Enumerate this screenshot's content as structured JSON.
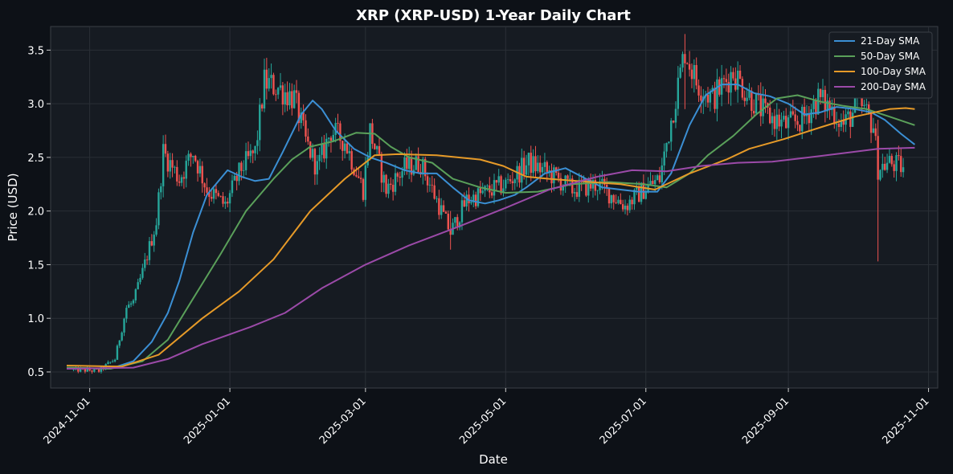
{
  "chart_data": {
    "type": "line",
    "title": "XRP (XRP-USD) 1-Year Daily Chart",
    "xlabel": "Date",
    "ylabel": "Price (USD)",
    "x_range": [
      "2024-10-15",
      "2025-11-05"
    ],
    "xticks": [
      "2024-11-01",
      "2025-01-01",
      "2025-03-01",
      "2025-05-01",
      "2025-07-01",
      "2025-09-01",
      "2025-11-01"
    ],
    "ylim": [
      0.35,
      3.72
    ],
    "yticks": [
      "0.5",
      "1.0",
      "1.5",
      "2.0",
      "2.5",
      "3.0",
      "3.5"
    ],
    "grid": true,
    "legend_position": "top-right",
    "candles": {
      "up_color": "#26a69a",
      "down_color": "#ef5350",
      "anchors": [
        [
          "2024-10-25",
          0.52
        ],
        [
          "2024-11-05",
          0.51
        ],
        [
          "2024-11-12",
          0.62
        ],
        [
          "2024-11-17",
          1.1
        ],
        [
          "2024-11-20",
          1.15
        ],
        [
          "2024-11-24",
          1.43
        ],
        [
          "2024-11-30",
          1.9
        ],
        [
          "2024-12-03",
          2.55
        ],
        [
          "2024-12-10",
          2.3
        ],
        [
          "2024-12-16",
          2.55
        ],
        [
          "2024-12-22",
          2.2
        ],
        [
          "2024-12-30",
          2.05
        ],
        [
          "2025-01-06",
          2.4
        ],
        [
          "2025-01-12",
          2.55
        ],
        [
          "2025-01-16",
          3.2
        ],
        [
          "2025-01-22",
          3.15
        ],
        [
          "2025-01-29",
          3.05
        ],
        [
          "2025-02-03",
          2.65
        ],
        [
          "2025-02-08",
          2.4
        ],
        [
          "2025-02-14",
          2.75
        ],
        [
          "2025-02-20",
          2.65
        ],
        [
          "2025-02-28",
          2.2
        ],
        [
          "2025-03-03",
          2.75
        ],
        [
          "2025-03-10",
          2.2
        ],
        [
          "2025-03-18",
          2.4
        ],
        [
          "2025-03-25",
          2.45
        ],
        [
          "2025-04-01",
          2.1
        ],
        [
          "2025-04-07",
          1.8
        ],
        [
          "2025-04-14",
          2.1
        ],
        [
          "2025-04-25",
          2.2
        ],
        [
          "2025-05-01",
          2.25
        ],
        [
          "2025-05-11",
          2.45
        ],
        [
          "2025-05-20",
          2.35
        ],
        [
          "2025-05-30",
          2.2
        ],
        [
          "2025-06-10",
          2.25
        ],
        [
          "2025-06-22",
          2.05
        ],
        [
          "2025-06-30",
          2.2
        ],
        [
          "2025-07-07",
          2.3
        ],
        [
          "2025-07-12",
          2.85
        ],
        [
          "2025-07-18",
          3.5
        ],
        [
          "2025-07-23",
          3.2
        ],
        [
          "2025-07-30",
          3.05
        ],
        [
          "2025-08-08",
          3.3
        ],
        [
          "2025-08-14",
          3.1
        ],
        [
          "2025-08-22",
          2.9
        ],
        [
          "2025-08-31",
          2.8
        ],
        [
          "2025-09-07",
          2.85
        ],
        [
          "2025-09-14",
          3.05
        ],
        [
          "2025-09-20",
          2.95
        ],
        [
          "2025-09-25",
          2.8
        ],
        [
          "2025-10-02",
          3.0
        ],
        [
          "2025-10-08",
          2.8
        ],
        [
          "2025-10-10",
          2.4
        ],
        [
          "2025-10-15",
          2.45
        ],
        [
          "2025-10-21",
          2.4
        ]
      ],
      "special_wicks": [
        [
          "2025-10-10",
          1.53,
          2.85
        ],
        [
          "2025-04-07",
          1.64,
          2.0
        ],
        [
          "2025-07-18",
          2.95,
          3.65
        ]
      ]
    },
    "series": [
      {
        "name": "21-Day SMA",
        "color": "#3b8fd4",
        "points": [
          [
            "2024-10-22",
            0.54
          ],
          [
            "2024-11-10",
            0.53
          ],
          [
            "2024-11-20",
            0.6
          ],
          [
            "2024-11-28",
            0.78
          ],
          [
            "2024-12-05",
            1.05
          ],
          [
            "2024-12-10",
            1.35
          ],
          [
            "2024-12-16",
            1.8
          ],
          [
            "2024-12-22",
            2.15
          ],
          [
            "2024-12-31",
            2.38
          ],
          [
            "2025-01-06",
            2.32
          ],
          [
            "2025-01-12",
            2.28
          ],
          [
            "2025-01-18",
            2.3
          ],
          [
            "2025-01-24",
            2.55
          ],
          [
            "2025-02-01",
            2.9
          ],
          [
            "2025-02-06",
            3.03
          ],
          [
            "2025-02-10",
            2.95
          ],
          [
            "2025-02-16",
            2.75
          ],
          [
            "2025-02-24",
            2.58
          ],
          [
            "2025-03-03",
            2.5
          ],
          [
            "2025-03-10",
            2.45
          ],
          [
            "2025-03-18",
            2.38
          ],
          [
            "2025-03-25",
            2.35
          ],
          [
            "2025-04-01",
            2.35
          ],
          [
            "2025-04-08",
            2.22
          ],
          [
            "2025-04-15",
            2.1
          ],
          [
            "2025-04-22",
            2.07
          ],
          [
            "2025-04-28",
            2.1
          ],
          [
            "2025-05-05",
            2.15
          ],
          [
            "2025-05-10",
            2.22
          ],
          [
            "2025-05-18",
            2.35
          ],
          [
            "2025-05-27",
            2.4
          ],
          [
            "2025-06-05",
            2.3
          ],
          [
            "2025-06-12",
            2.22
          ],
          [
            "2025-06-20",
            2.2
          ],
          [
            "2025-06-28",
            2.18
          ],
          [
            "2025-07-06",
            2.18
          ],
          [
            "2025-07-12",
            2.35
          ],
          [
            "2025-07-20",
            2.8
          ],
          [
            "2025-07-27",
            3.08
          ],
          [
            "2025-08-03",
            3.18
          ],
          [
            "2025-08-10",
            3.18
          ],
          [
            "2025-08-17",
            3.1
          ],
          [
            "2025-08-24",
            3.07
          ],
          [
            "2025-09-01",
            3.0
          ],
          [
            "2025-09-08",
            2.9
          ],
          [
            "2025-09-15",
            2.92
          ],
          [
            "2025-09-22",
            2.97
          ],
          [
            "2025-09-30",
            2.95
          ],
          [
            "2025-10-07",
            2.92
          ],
          [
            "2025-10-13",
            2.85
          ],
          [
            "2025-10-20",
            2.72
          ],
          [
            "2025-10-26",
            2.62
          ]
        ]
      },
      {
        "name": "50-Day SMA",
        "color": "#5aa05a",
        "points": [
          [
            "2024-10-22",
            0.54
          ],
          [
            "2024-11-10",
            0.53
          ],
          [
            "2024-11-24",
            0.6
          ],
          [
            "2024-12-05",
            0.8
          ],
          [
            "2024-12-15",
            1.15
          ],
          [
            "2024-12-28",
            1.6
          ],
          [
            "2025-01-08",
            2.0
          ],
          [
            "2025-01-20",
            2.3
          ],
          [
            "2025-01-28",
            2.48
          ],
          [
            "2025-02-05",
            2.6
          ],
          [
            "2025-02-15",
            2.65
          ],
          [
            "2025-02-25",
            2.73
          ],
          [
            "2025-03-05",
            2.72
          ],
          [
            "2025-03-12",
            2.6
          ],
          [
            "2025-03-20",
            2.5
          ],
          [
            "2025-03-30",
            2.45
          ],
          [
            "2025-04-08",
            2.3
          ],
          [
            "2025-04-20",
            2.22
          ],
          [
            "2025-05-01",
            2.17
          ],
          [
            "2025-05-15",
            2.18
          ],
          [
            "2025-05-30",
            2.25
          ],
          [
            "2025-06-15",
            2.27
          ],
          [
            "2025-06-30",
            2.25
          ],
          [
            "2025-07-10",
            2.22
          ],
          [
            "2025-07-20",
            2.35
          ],
          [
            "2025-07-28",
            2.52
          ],
          [
            "2025-08-08",
            2.7
          ],
          [
            "2025-08-18",
            2.9
          ],
          [
            "2025-08-27",
            3.05
          ],
          [
            "2025-09-05",
            3.08
          ],
          [
            "2025-09-15",
            3.02
          ],
          [
            "2025-09-25",
            2.98
          ],
          [
            "2025-10-05",
            2.95
          ],
          [
            "2025-10-15",
            2.88
          ],
          [
            "2025-10-26",
            2.8
          ]
        ]
      },
      {
        "name": "100-Day SMA",
        "color": "#e69a28",
        "points": [
          [
            "2024-10-22",
            0.56
          ],
          [
            "2024-11-15",
            0.55
          ],
          [
            "2024-12-01",
            0.66
          ],
          [
            "2024-12-20",
            1.0
          ],
          [
            "2025-01-05",
            1.25
          ],
          [
            "2025-01-20",
            1.55
          ],
          [
            "2025-02-05",
            2.0
          ],
          [
            "2025-02-20",
            2.3
          ],
          [
            "2025-03-05",
            2.52
          ],
          [
            "2025-03-15",
            2.53
          ],
          [
            "2025-04-01",
            2.52
          ],
          [
            "2025-04-20",
            2.48
          ],
          [
            "2025-04-30",
            2.42
          ],
          [
            "2025-05-10",
            2.32
          ],
          [
            "2025-05-20",
            2.3
          ],
          [
            "2025-06-01",
            2.28
          ],
          [
            "2025-06-20",
            2.25
          ],
          [
            "2025-07-05",
            2.2
          ],
          [
            "2025-07-20",
            2.35
          ],
          [
            "2025-08-05",
            2.48
          ],
          [
            "2025-08-15",
            2.58
          ],
          [
            "2025-08-30",
            2.67
          ],
          [
            "2025-09-15",
            2.78
          ],
          [
            "2025-09-30",
            2.88
          ],
          [
            "2025-10-15",
            2.95
          ],
          [
            "2025-10-22",
            2.96
          ],
          [
            "2025-10-26",
            2.95
          ]
        ]
      },
      {
        "name": "200-Day SMA",
        "color": "#9b4aa8",
        "points": [
          [
            "2024-10-22",
            0.53
          ],
          [
            "2024-11-20",
            0.54
          ],
          [
            "2024-12-05",
            0.62
          ],
          [
            "2024-12-20",
            0.76
          ],
          [
            "2025-01-10",
            0.92
          ],
          [
            "2025-01-25",
            1.05
          ],
          [
            "2025-02-10",
            1.28
          ],
          [
            "2025-03-01",
            1.5
          ],
          [
            "2025-03-20",
            1.68
          ],
          [
            "2025-04-10",
            1.85
          ],
          [
            "2025-05-01",
            2.03
          ],
          [
            "2025-05-20",
            2.2
          ],
          [
            "2025-06-10",
            2.32
          ],
          [
            "2025-06-25",
            2.38
          ],
          [
            "2025-07-10",
            2.37
          ],
          [
            "2025-07-25",
            2.42
          ],
          [
            "2025-08-10",
            2.45
          ],
          [
            "2025-08-25",
            2.46
          ],
          [
            "2025-09-10",
            2.5
          ],
          [
            "2025-09-25",
            2.54
          ],
          [
            "2025-10-10",
            2.58
          ],
          [
            "2025-10-26",
            2.59
          ]
        ]
      }
    ]
  }
}
